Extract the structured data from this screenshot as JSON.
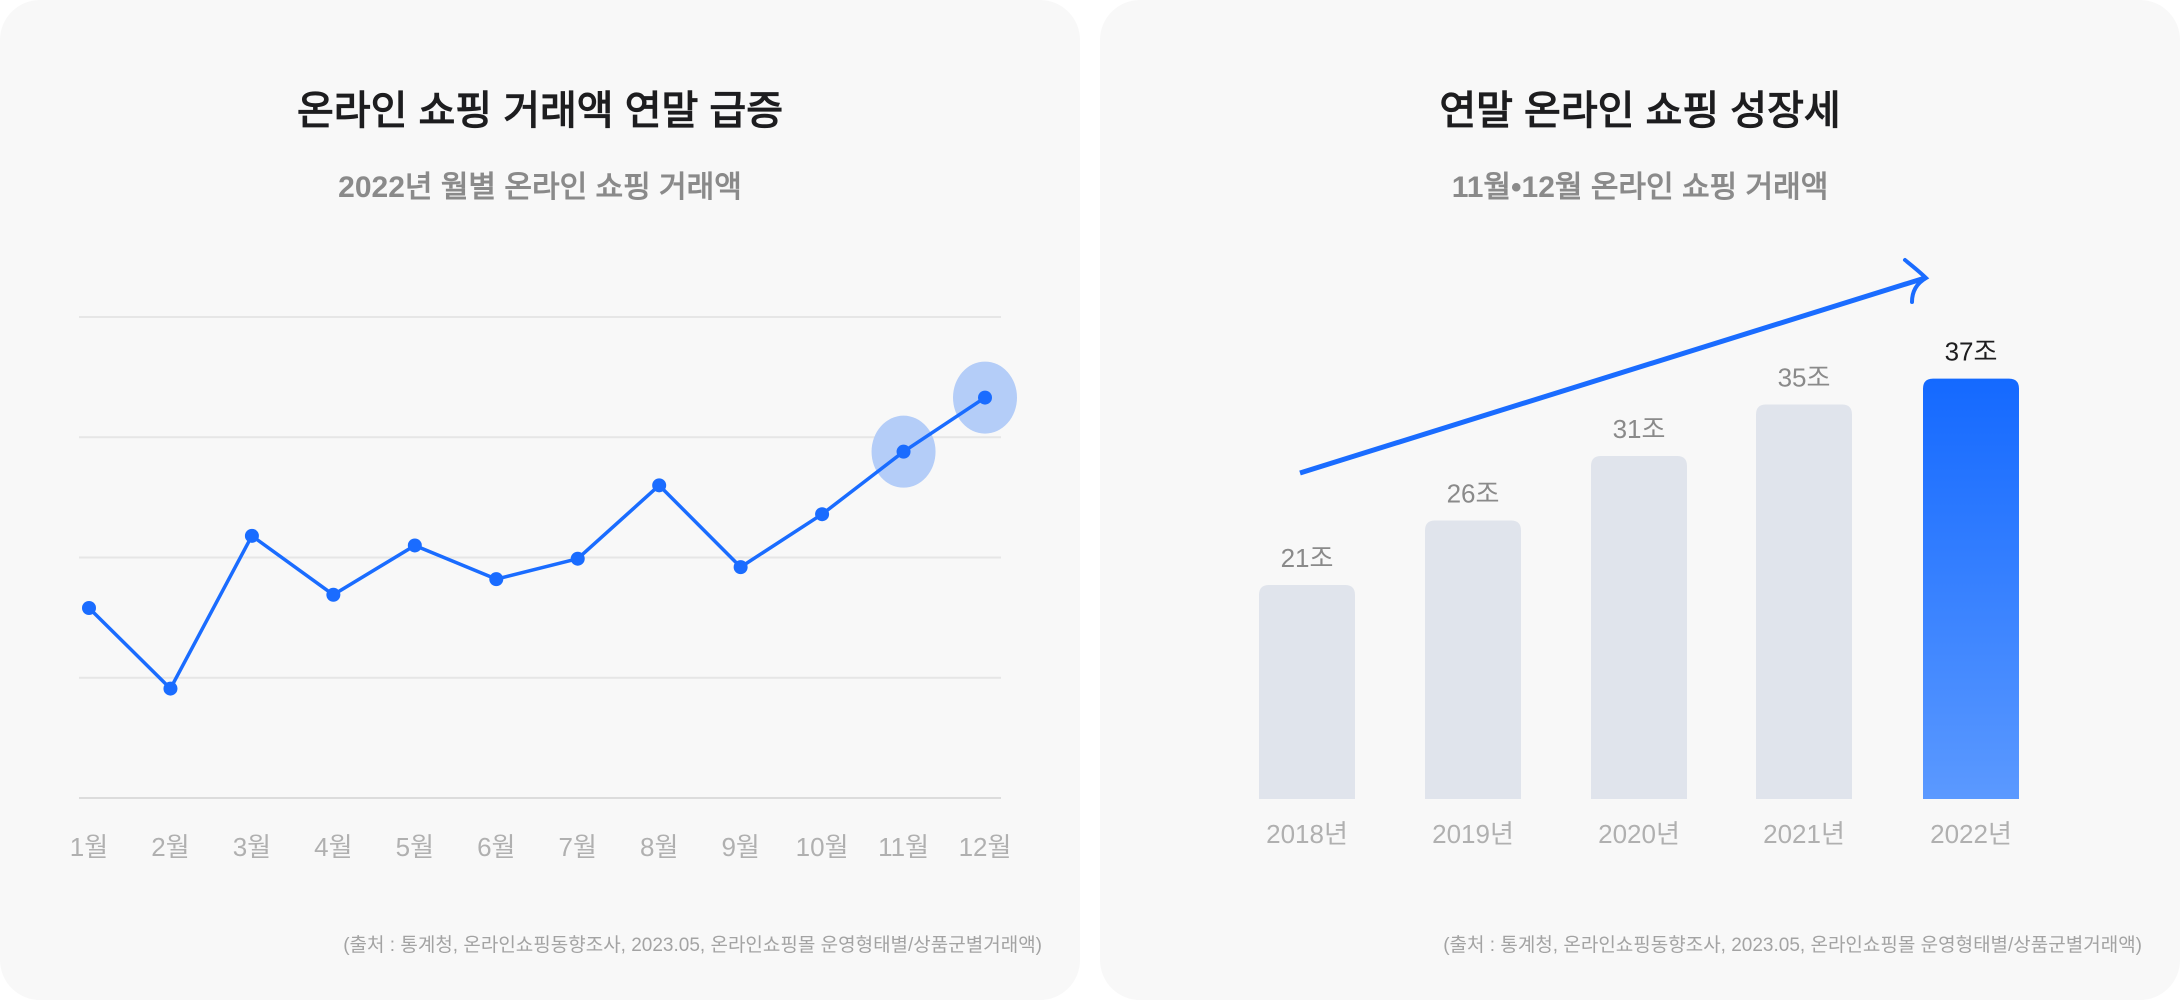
{
  "left_panel": {
    "title": "온라인 쇼핑 거래액 연말 급증",
    "subtitle": "2022년 월별 온라인 쇼핑 거래액",
    "source": "(출처 : 통계청, 온라인쇼핑동향조사, 2023.05, 온라인쇼핑몰 운영형태별/상품군별거래액)"
  },
  "right_panel": {
    "title": "연말 온라인 쇼핑 성장세",
    "subtitle": "11월•12월 온라인 쇼핑 거래액",
    "source": "(출처 : 통계청, 온라인쇼핑동향조사, 2023.05, 온라인쇼핑몰 운영형태별/상품군별거래액)"
  },
  "colors": {
    "accent": "#1a6cff",
    "highlight": "#b4cdf8",
    "bar_muted": "#e0e4ec",
    "bar_gradient_top": "#1469ff",
    "bar_gradient_bottom": "#5b99ff",
    "grid": "#e6e6e6"
  },
  "chart_data": [
    {
      "type": "line",
      "categories": [
        "1월",
        "2월",
        "3월",
        "4월",
        "5월",
        "6월",
        "7월",
        "8월",
        "9월",
        "10월",
        "11월",
        "12월"
      ],
      "values": [
        1.58,
        0.91,
        2.18,
        1.69,
        2.1,
        1.82,
        1.99,
        2.6,
        1.92,
        2.36,
        2.88,
        3.33
      ],
      "highlighted": [
        "11월",
        "12월"
      ],
      "ylim": [
        0,
        4
      ],
      "grid": true,
      "y_tick_labels_shown": false
    },
    {
      "type": "bar",
      "categories": [
        "2018년",
        "2019년",
        "2020년",
        "2021년",
        "2022년"
      ],
      "values": [
        21,
        26,
        31,
        35,
        37
      ],
      "data_labels": [
        "21조",
        "26조",
        "31조",
        "35조",
        "37조"
      ],
      "highlighted": "2022년",
      "trend_arrow": true,
      "grid": false
    }
  ]
}
